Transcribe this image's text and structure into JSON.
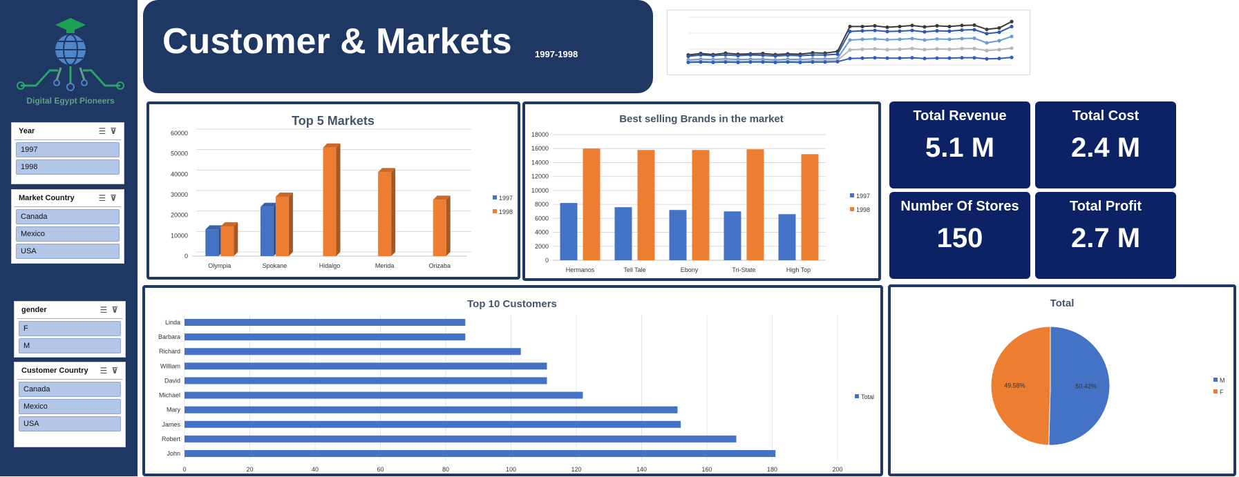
{
  "header": {
    "title": "Customer & Markets",
    "subtitle": "1997-1998"
  },
  "logo": {
    "caption": "Digital Egypt Pioneers"
  },
  "slicers": [
    {
      "title": "Year",
      "items": [
        "1997",
        "1998"
      ]
    },
    {
      "title": "Market Country",
      "items": [
        "Canada",
        "Mexico",
        "USA"
      ]
    },
    {
      "title": "gender",
      "items": [
        "F",
        "M"
      ]
    },
    {
      "title": "Customer Country",
      "items": [
        "Canada",
        "Mexico",
        "USA"
      ]
    }
  ],
  "kpis": [
    {
      "label": "Total Revenue",
      "value": "5.1 M"
    },
    {
      "label": "Total Cost",
      "value": "2.4 M"
    },
    {
      "label": "Number Of Stores",
      "value": "150"
    },
    {
      "label": "Total Profit",
      "value": "2.7 M"
    }
  ],
  "colors": {
    "navy": "#1f3763",
    "kpi": "#0d2265",
    "blue": "#4472c4",
    "orange": "#ed7d31"
  },
  "chart_data": [
    {
      "id": "top5",
      "type": "bar",
      "title": "Top 5 Markets",
      "categories": [
        "Olympia",
        "Spokane",
        "Hidalgo",
        "Merida",
        "Orizaba"
      ],
      "series": [
        {
          "name": "1997",
          "values": [
            13000,
            24000,
            null,
            null,
            null
          ]
        },
        {
          "name": "1998",
          "values": [
            14500,
            29000,
            53000,
            41000,
            27500
          ]
        }
      ],
      "yticks": [
        0,
        10000,
        20000,
        30000,
        40000,
        50000,
        60000
      ],
      "ylim": [
        0,
        60000
      ],
      "legend": "right"
    },
    {
      "id": "brands",
      "type": "bar",
      "title": "Best selling Brands in the market",
      "categories": [
        "Hermanos",
        "Tell Tale",
        "Ebony",
        "Tri-State",
        "High Top"
      ],
      "series": [
        {
          "name": "1997",
          "values": [
            8200,
            7600,
            7200,
            7000,
            6600
          ]
        },
        {
          "name": "1998",
          "values": [
            16000,
            15800,
            15800,
            15900,
            15200
          ]
        }
      ],
      "yticks": [
        0,
        2000,
        4000,
        6000,
        8000,
        10000,
        12000,
        14000,
        16000,
        18000
      ],
      "ylim": [
        0,
        18000
      ],
      "legend": "right"
    },
    {
      "id": "customers",
      "type": "bar",
      "orientation": "horizontal",
      "title": "Top 10 Customers",
      "categories": [
        "Linda",
        "Barbara",
        "Richard",
        "William",
        "David",
        "Michael",
        "Mary",
        "James",
        "Robert",
        "John"
      ],
      "series": [
        {
          "name": "Total",
          "values": [
            86,
            86,
            103,
            111,
            111,
            122,
            151,
            152,
            169,
            181
          ]
        }
      ],
      "xticks": [
        0,
        20,
        40,
        60,
        80,
        100,
        120,
        140,
        160,
        180,
        200
      ],
      "xlim": [
        0,
        200
      ],
      "legend": "right"
    },
    {
      "id": "gender",
      "type": "pie",
      "title": "Total",
      "slices": [
        {
          "name": "M",
          "value": 50.42,
          "label": "50.42%"
        },
        {
          "name": "F",
          "value": 49.58,
          "label": "49.58%"
        }
      ],
      "legend": "right"
    },
    {
      "id": "sparkline",
      "type": "line",
      "title": "",
      "series": [
        {
          "name": "",
          "values": [
            3,
            3.4,
            3.1,
            3.5,
            3.2,
            3.3,
            3.4,
            3.1,
            3.3,
            3.2,
            3.6,
            3.5,
            4,
            11,
            11,
            11.2,
            10.8,
            11,
            11.3,
            10.9,
            11.2,
            11,
            11.3,
            11.4,
            10.2,
            10.6,
            12.4
          ]
        },
        {
          "name": "",
          "values": [
            2.6,
            3,
            2.8,
            3,
            2.8,
            3,
            2.9,
            2.7,
            2.9,
            2.8,
            3,
            3,
            3.2,
            9.6,
            9.8,
            9.9,
            9.6,
            9.7,
            9.9,
            9.5,
            9.8,
            9.7,
            10,
            10.1,
            9,
            9.4,
            11
          ]
        },
        {
          "name": "",
          "values": [
            1.6,
            1.8,
            1.7,
            1.9,
            1.7,
            1.8,
            1.8,
            1.6,
            1.8,
            1.7,
            1.9,
            1.9,
            2,
            7.2,
            7.4,
            7.5,
            7.3,
            7.4,
            7.6,
            7.2,
            7.5,
            7.4,
            7.6,
            7.7,
            6.4,
            7,
            8.2
          ]
        },
        {
          "name": "",
          "values": [
            1.2,
            1.3,
            1.2,
            1.4,
            1.2,
            1.3,
            1.3,
            1.2,
            1.3,
            1.2,
            1.4,
            1.4,
            1.5,
            4.4,
            4.6,
            4.7,
            4.5,
            4.6,
            4.8,
            4.5,
            4.7,
            4.6,
            4.8,
            4.8,
            4.2,
            4.5,
            4.9
          ]
        },
        {
          "name": "",
          "values": [
            0.9,
            1,
            0.9,
            1,
            0.9,
            1,
            1,
            0.9,
            1,
            0.9,
            1,
            1,
            1.1,
            2,
            2.1,
            2.2,
            2.1,
            2.1,
            2.2,
            2,
            2.1,
            2.1,
            2.2,
            2.2,
            1.9,
            2,
            2.3
          ]
        }
      ],
      "colors": [
        "#3a3a3a",
        "#2a5aa8",
        "#6a9bd8",
        "#b5b5b5",
        "#2e5fb8"
      ],
      "ylim": [
        0,
        14
      ]
    }
  ]
}
